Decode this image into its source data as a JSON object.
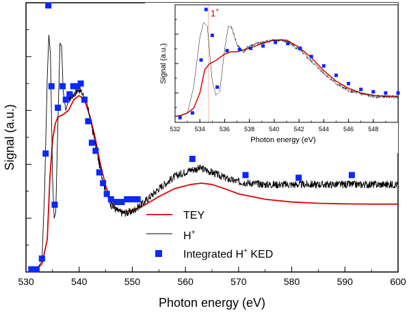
{
  "chart_data": [
    {
      "type": "line",
      "xlabel": "Photon energy (eV)",
      "ylabel": "Signal (a.u.)",
      "xlim": [
        530,
        600
      ],
      "ylim": [
        0,
        1
      ],
      "xticks": [
        530,
        540,
        550,
        560,
        570,
        580,
        590,
        600
      ],
      "y_tick_labels_shown": false,
      "legend_position": "bottom-right",
      "colors": {
        "TEY": "#e00000",
        "H": "#000000",
        "KED": "#0a28ff"
      },
      "legend": {
        "tey": "TEY",
        "h_base": "H",
        "h_sup": "+",
        "ked_a": "Integrated H",
        "ked_sup": "+",
        "ked_b": " KED"
      },
      "series": [
        {
          "name": "TEY",
          "type": "line",
          "x": [
            530.5,
            532,
            533,
            534,
            534.5,
            535,
            535.5,
            536,
            537,
            538,
            539,
            540,
            541,
            542,
            543,
            544,
            545,
            546,
            547,
            548,
            549,
            550,
            552,
            555,
            558,
            561,
            563,
            565,
            568,
            570,
            575,
            580,
            585,
            590,
            595,
            600
          ],
          "y": [
            0.0,
            0.01,
            0.03,
            0.12,
            0.35,
            0.49,
            0.55,
            0.575,
            0.585,
            0.6,
            0.64,
            0.655,
            0.64,
            0.58,
            0.5,
            0.4,
            0.32,
            0.26,
            0.235,
            0.225,
            0.225,
            0.23,
            0.245,
            0.28,
            0.31,
            0.325,
            0.33,
            0.325,
            0.305,
            0.29,
            0.27,
            0.26,
            0.255,
            0.253,
            0.252,
            0.252
          ]
        },
        {
          "name": "H",
          "type": "line",
          "x": [
            530.5,
            532,
            533,
            533.5,
            534,
            534.3,
            534.6,
            535,
            535.3,
            535.6,
            536,
            536.4,
            536.7,
            537,
            537.5,
            538,
            539,
            540,
            541,
            542,
            543,
            544,
            545,
            546,
            547,
            548,
            549,
            550,
            552,
            555,
            558,
            561,
            563,
            565,
            568,
            570,
            575,
            580,
            585,
            590,
            595,
            600
          ],
          "y": [
            0.0,
            0.01,
            0.04,
            0.3,
            0.72,
            0.88,
            0.81,
            0.35,
            0.2,
            0.22,
            0.55,
            0.85,
            0.84,
            0.67,
            0.6,
            0.64,
            0.66,
            0.68,
            0.65,
            0.58,
            0.48,
            0.38,
            0.3,
            0.25,
            0.23,
            0.22,
            0.22,
            0.225,
            0.255,
            0.31,
            0.355,
            0.38,
            0.385,
            0.37,
            0.345,
            0.335,
            0.325,
            0.325,
            0.325,
            0.325,
            0.325,
            0.325
          ]
        },
        {
          "name": "Integrated H+ KED",
          "type": "scatter",
          "x": [
            531,
            532,
            533,
            533.7,
            534.2,
            534.8,
            535.4,
            536,
            536.9,
            537.5,
            538.2,
            538.9,
            539.6,
            540.3,
            541,
            541.7,
            542.4,
            543.1,
            543.8,
            544.5,
            545.2,
            546,
            547,
            548,
            549,
            550,
            551,
            561.3,
            571.3,
            581.3,
            591.3
          ],
          "y": [
            0.01,
            0.01,
            0.05,
            0.44,
            0.99,
            0.69,
            0.25,
            0.61,
            0.69,
            0.64,
            0.66,
            0.69,
            0.69,
            0.7,
            0.64,
            0.56,
            0.48,
            0.45,
            0.37,
            0.33,
            0.29,
            0.27,
            0.26,
            0.26,
            0.27,
            0.27,
            0.27,
            0.42,
            0.36,
            0.35,
            0.36
          ]
        }
      ]
    },
    {
      "type": "line",
      "xlabel": "Photon energy (eV)",
      "ylabel": "Signal (a.u.)",
      "xlim": [
        532,
        550
      ],
      "ylim": [
        0,
        1
      ],
      "xticks": [
        532,
        534,
        536,
        538,
        540,
        542,
        544,
        546,
        548
      ],
      "y_tick_labels_shown": false,
      "annotation": {
        "text": "1",
        "sup": "+",
        "x": 534.7
      },
      "series": [
        {
          "name": "TEY",
          "type": "line",
          "x": [
            532,
            532.5,
            533,
            533.5,
            534,
            534.4,
            534.8,
            535.2,
            535.6,
            536,
            536.5,
            537,
            538,
            539,
            540,
            541,
            542,
            543,
            544,
            545,
            546,
            547,
            548,
            549,
            550
          ],
          "y": [
            0.05,
            0.06,
            0.08,
            0.12,
            0.25,
            0.45,
            0.5,
            0.52,
            0.55,
            0.58,
            0.6,
            0.6,
            0.63,
            0.67,
            0.7,
            0.7,
            0.64,
            0.55,
            0.44,
            0.35,
            0.29,
            0.25,
            0.23,
            0.22,
            0.22
          ]
        },
        {
          "name": "H",
          "type": "line",
          "x": [
            532,
            532.5,
            533,
            533.5,
            534,
            534.3,
            534.6,
            535,
            535.3,
            535.6,
            536,
            536.3,
            536.6,
            537,
            537.5,
            538,
            539,
            540,
            541,
            542,
            543,
            544,
            545,
            546,
            547,
            548,
            549,
            550
          ],
          "y": [
            0.05,
            0.06,
            0.08,
            0.3,
            0.72,
            0.85,
            0.82,
            0.35,
            0.23,
            0.26,
            0.62,
            0.82,
            0.8,
            0.66,
            0.6,
            0.65,
            0.68,
            0.7,
            0.69,
            0.62,
            0.52,
            0.42,
            0.33,
            0.27,
            0.24,
            0.22,
            0.22,
            0.22
          ]
        },
        {
          "name": "Integrated H+ KED",
          "type": "scatter",
          "x": [
            532.4,
            533.4,
            534.1,
            534.5,
            535,
            535.4,
            536.2,
            537.2,
            538.1,
            539.1,
            540.1,
            541.1,
            542.1,
            543,
            544,
            545,
            546,
            547,
            548,
            549,
            550
          ],
          "y": [
            0.04,
            0.08,
            0.53,
            0.96,
            0.74,
            0.3,
            0.61,
            0.62,
            0.63,
            0.65,
            0.68,
            0.67,
            0.63,
            0.56,
            0.48,
            0.4,
            0.33,
            0.28,
            0.26,
            0.25,
            0.25
          ]
        }
      ]
    }
  ]
}
